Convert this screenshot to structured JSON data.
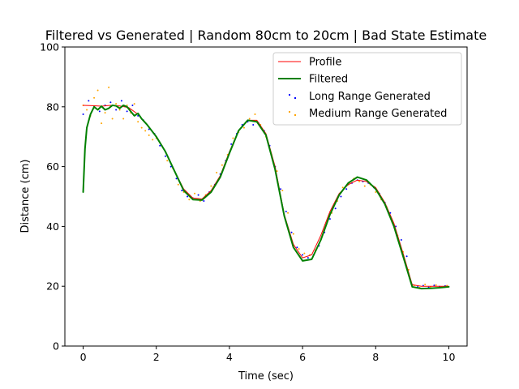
{
  "chart_data": {
    "type": "line",
    "title": "Filtered vs Generated | Random 80cm to 20cm | Bad State Estimate",
    "xlabel": "Time (sec)",
    "ylabel": "Distance (cm)",
    "xlim": [
      -0.5,
      10.5
    ],
    "ylim": [
      0,
      100
    ],
    "xticks": [
      0,
      2,
      4,
      6,
      8,
      10
    ],
    "yticks": [
      0,
      20,
      40,
      60,
      80,
      100
    ],
    "grid": false,
    "legend_position": "top-right",
    "series": [
      {
        "name": "Profile",
        "kind": "line",
        "color": "#ff0000",
        "x": [
          0.0,
          0.25,
          0.5,
          0.75,
          1.0,
          1.25,
          1.5,
          1.75,
          2.0,
          2.25,
          2.5,
          2.75,
          3.0,
          3.25,
          3.5,
          3.75,
          4.0,
          4.25,
          4.5,
          4.75,
          5.0,
          5.25,
          5.5,
          5.75,
          6.0,
          6.25,
          6.5,
          6.75,
          7.0,
          7.25,
          7.5,
          7.75,
          8.0,
          8.25,
          8.5,
          8.75,
          9.0,
          9.25,
          9.5,
          9.75,
          10.0
        ],
        "y": [
          80.5,
          80.4,
          80.2,
          80.5,
          80.3,
          79.7,
          77.5,
          74.0,
          70.2,
          65.0,
          58.5,
          52.5,
          49.5,
          49.2,
          52.0,
          57.0,
          65.0,
          72.0,
          75.5,
          75.5,
          71.0,
          60.0,
          44.0,
          34.0,
          29.5,
          30.5,
          37.0,
          45.0,
          51.0,
          54.0,
          55.5,
          55.0,
          53.0,
          48.0,
          41.0,
          31.0,
          20.5,
          20.0,
          20.0,
          20.0,
          20.0
        ]
      },
      {
        "name": "Filtered",
        "kind": "line",
        "color": "#008000",
        "x": [
          0.0,
          0.05,
          0.1,
          0.2,
          0.3,
          0.4,
          0.5,
          0.6,
          0.7,
          0.8,
          0.9,
          1.0,
          1.1,
          1.2,
          1.3,
          1.4,
          1.5,
          1.6,
          1.75,
          2.0,
          2.25,
          2.5,
          2.75,
          3.0,
          3.25,
          3.5,
          3.75,
          4.0,
          4.25,
          4.5,
          4.75,
          5.0,
          5.25,
          5.5,
          5.75,
          6.0,
          6.25,
          6.5,
          6.75,
          7.0,
          7.25,
          7.5,
          7.75,
          8.0,
          8.25,
          8.5,
          8.75,
          9.0,
          9.25,
          9.5,
          9.75,
          10.0
        ],
        "y": [
          51.5,
          66.0,
          73.0,
          77.5,
          80.0,
          79.0,
          80.2,
          79.0,
          79.5,
          80.5,
          80.3,
          79.5,
          80.5,
          80.0,
          78.5,
          77.0,
          77.8,
          76.0,
          74.0,
          70.0,
          65.0,
          58.5,
          52.0,
          49.0,
          48.8,
          51.5,
          56.5,
          64.5,
          72.0,
          75.5,
          75.0,
          70.5,
          59.0,
          43.5,
          33.0,
          28.5,
          29.0,
          35.5,
          44.0,
          50.5,
          54.5,
          56.5,
          55.5,
          52.5,
          47.5,
          40.0,
          30.0,
          19.8,
          19.2,
          19.3,
          19.5,
          19.8
        ]
      },
      {
        "name": "Long Range Generated",
        "kind": "scatter",
        "color": "#0000ff",
        "x": [
          0.0,
          0.15,
          0.3,
          0.45,
          0.6,
          0.75,
          0.9,
          1.05,
          1.2,
          1.35,
          1.5,
          1.65,
          1.8,
          1.95,
          2.1,
          2.25,
          2.4,
          2.55,
          2.7,
          2.85,
          3.0,
          3.15,
          3.3,
          3.45,
          3.6,
          3.75,
          3.9,
          4.05,
          4.2,
          4.35,
          4.5,
          4.65,
          4.8,
          4.95,
          5.1,
          5.25,
          5.4,
          5.55,
          5.7,
          5.85,
          6.0,
          6.15,
          6.3,
          6.45,
          6.6,
          6.75,
          6.9,
          7.05,
          7.2,
          7.35,
          7.5,
          7.65,
          7.8,
          7.95,
          8.1,
          8.25,
          8.4,
          8.55,
          8.7,
          8.85,
          9.0,
          9.15,
          9.3,
          9.45,
          9.6,
          9.75,
          9.9
        ],
        "y": [
          77.5,
          82.0,
          80.0,
          78.5,
          80.5,
          81.5,
          79.0,
          82.0,
          78.5,
          80.5,
          77.0,
          75.5,
          72.5,
          71.0,
          67.0,
          63.5,
          60.0,
          56.0,
          52.0,
          50.0,
          49.5,
          50.5,
          48.5,
          51.5,
          54.0,
          57.5,
          62.0,
          67.5,
          71.0,
          74.0,
          75.0,
          74.0,
          74.5,
          72.0,
          67.0,
          60.0,
          52.5,
          45.0,
          38.0,
          33.0,
          30.5,
          29.5,
          30.5,
          33.5,
          38.0,
          42.5,
          46.0,
          50.0,
          52.5,
          54.5,
          55.5,
          55.0,
          54.5,
          53.0,
          51.0,
          48.0,
          44.5,
          40.0,
          35.5,
          30.0,
          20.5,
          19.8,
          20.2,
          19.6,
          20.3,
          19.9,
          20.1
        ]
      },
      {
        "name": "Medium Range Generated",
        "kind": "scatter",
        "color": "#ffa500",
        "x": [
          0.0,
          0.1,
          0.2,
          0.3,
          0.4,
          0.5,
          0.6,
          0.7,
          0.8,
          0.9,
          1.0,
          1.1,
          1.2,
          1.3,
          1.4,
          1.5,
          1.6,
          1.7,
          1.8,
          1.9,
          2.0,
          2.15,
          2.3,
          2.45,
          2.6,
          2.75,
          2.9,
          3.05,
          3.2,
          3.35,
          3.5,
          3.65,
          3.8,
          3.95,
          4.1,
          4.25,
          4.4,
          4.55,
          4.7,
          4.85,
          5.0,
          5.15,
          5.3,
          5.45,
          5.6,
          5.75,
          5.9,
          6.05,
          6.2,
          6.35,
          6.5,
          6.65,
          6.8,
          6.95,
          7.1,
          7.25,
          7.4,
          7.55,
          7.7,
          7.85,
          8.0,
          8.15,
          8.3,
          8.45,
          8.6,
          8.75,
          8.9,
          9.05,
          9.2,
          9.35,
          9.5,
          9.65,
          9.8,
          9.95
        ],
        "y": [
          80.5,
          79.0,
          77.0,
          83.0,
          85.5,
          74.5,
          78.0,
          86.5,
          76.0,
          81.0,
          79.0,
          76.0,
          80.5,
          78.0,
          81.0,
          75.0,
          73.0,
          72.0,
          70.5,
          69.0,
          69.5,
          67.0,
          62.0,
          59.5,
          54.0,
          51.5,
          49.0,
          51.0,
          48.5,
          50.5,
          53.5,
          58.0,
          60.5,
          64.0,
          69.5,
          71.5,
          73.0,
          76.0,
          77.5,
          74.0,
          70.0,
          64.0,
          58.5,
          52.0,
          44.5,
          37.5,
          32.5,
          31.0,
          30.5,
          32.0,
          35.5,
          40.5,
          44.5,
          48.5,
          53.0,
          54.0,
          56.0,
          55.0,
          53.5,
          54.0,
          51.5,
          49.0,
          46.5,
          41.5,
          37.0,
          31.5,
          25.5,
          20.3,
          19.5,
          20.6,
          19.8,
          20.4,
          19.7,
          20.2
        ]
      }
    ]
  }
}
